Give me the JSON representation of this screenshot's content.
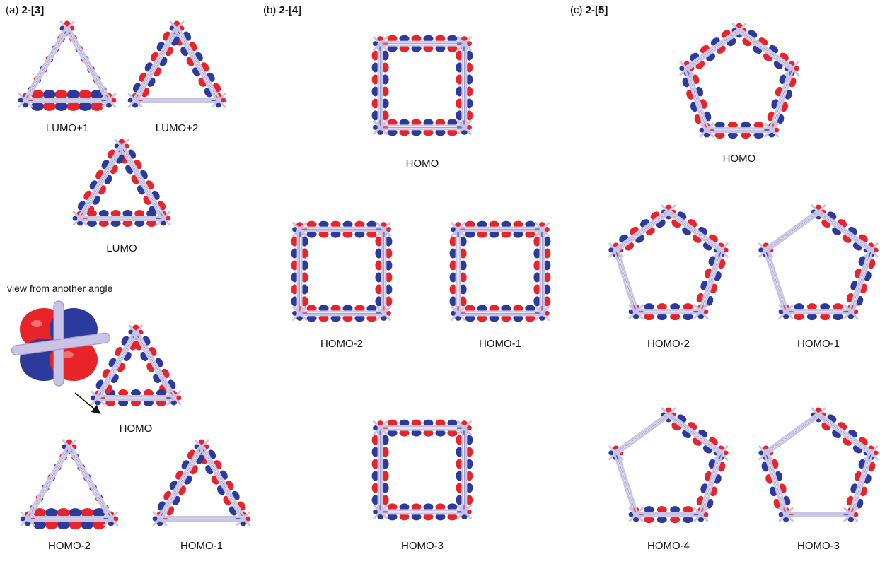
{
  "colors": {
    "positive_lobe": "#e8242a",
    "negative_lobe": "#2b3a9c",
    "bond": "#c9c4e6"
  },
  "panels": [
    {
      "prefix": "(a)",
      "name": "2-[3]",
      "orbitals": [
        "LUMO+1",
        "LUMO+2",
        "LUMO",
        "HOMO",
        "HOMO-2",
        "HOMO-1"
      ],
      "note": "view from another angle"
    },
    {
      "prefix": "(b)",
      "name": "2-[4]",
      "orbitals": [
        "HOMO",
        "HOMO-2",
        "HOMO-1",
        "HOMO-3"
      ]
    },
    {
      "prefix": "(c)",
      "name": "2-[5]",
      "orbitals": [
        "HOMO",
        "HOMO-2",
        "HOMO-1",
        "HOMO-4",
        "HOMO-3"
      ]
    }
  ]
}
